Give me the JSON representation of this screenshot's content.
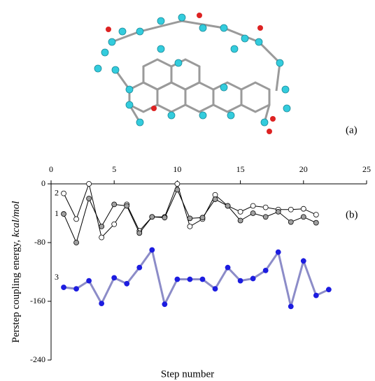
{
  "chart_data": {
    "type": "line",
    "ylabel": {
      "text": "Perstep coupling energy, ",
      "unit": "kcal/mol"
    },
    "xlabel": "Step number",
    "annotations": [
      "(a)",
      "(b)"
    ],
    "xlim": [
      0,
      25
    ],
    "xticks": [
      0,
      5,
      10,
      15,
      20,
      25
    ],
    "ylim": [
      -240,
      0
    ],
    "yticks": [
      0,
      -80,
      -160,
      -240
    ],
    "series": [
      {
        "name": "2",
        "color": "#000000",
        "marker_fill": "#ffffff",
        "x": [
          1,
          2,
          3,
          4,
          5,
          6,
          7,
          8,
          9,
          10,
          11,
          12,
          13,
          14,
          15,
          16,
          17,
          18,
          19,
          20,
          21
        ],
        "values": [
          -13,
          -48,
          0,
          -73,
          -55,
          -28,
          -64,
          -45,
          -45,
          0,
          -58,
          -48,
          -15,
          -30,
          -38,
          -30,
          -32,
          -35,
          -35,
          -34,
          -42
        ]
      },
      {
        "name": "1",
        "color": "#000000",
        "marker_fill": "#a0a0a0",
        "x": [
          1,
          2,
          3,
          4,
          5,
          6,
          7,
          8,
          9,
          10,
          11,
          12,
          13,
          14,
          15,
          16,
          17,
          18,
          19,
          20,
          21
        ],
        "values": [
          -41,
          -80,
          -20,
          -58,
          -28,
          -30,
          -67,
          -45,
          -46,
          -8,
          -47,
          -46,
          -21,
          -30,
          -50,
          -40,
          -45,
          -38,
          -52,
          -45,
          -53
        ]
      },
      {
        "name": "3",
        "color": "#8c8cc8",
        "marker_fill": "#1c1ce0",
        "x": [
          1,
          2,
          3,
          4,
          5,
          6,
          7,
          8,
          9,
          10,
          11,
          12,
          13,
          14,
          15,
          16,
          17,
          18,
          19,
          20,
          21,
          22
        ],
        "values": [
          -141,
          -143,
          -132,
          -163,
          -128,
          -136,
          -114,
          -90,
          -164,
          -130,
          -130,
          -130,
          -143,
          -114,
          -132,
          -129,
          -118,
          -93,
          -167,
          -105,
          -152,
          -144
        ]
      }
    ]
  }
}
